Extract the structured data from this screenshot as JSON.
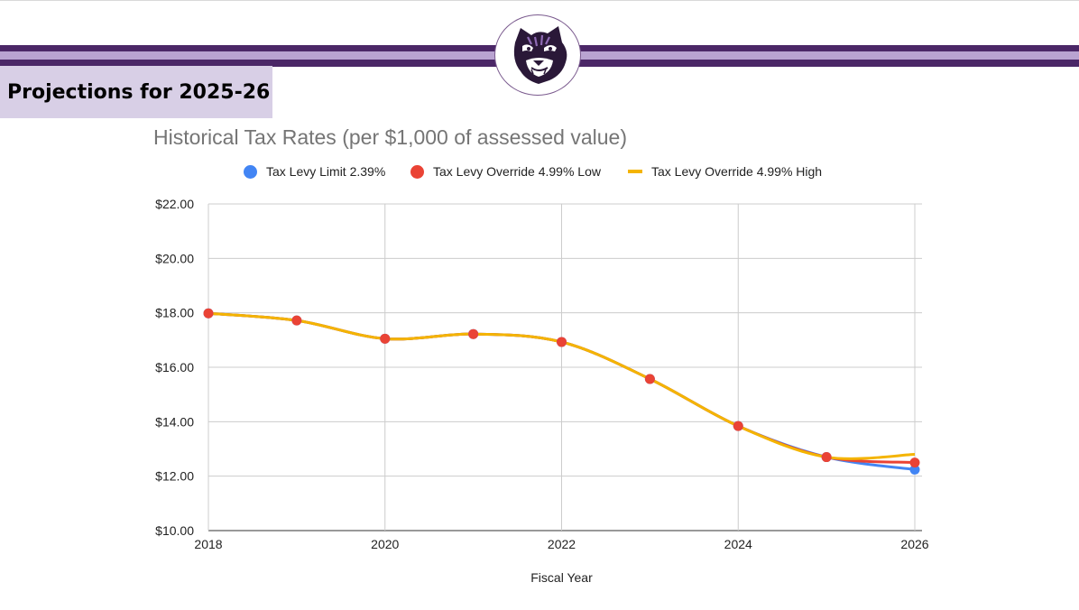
{
  "header": {
    "page_title": "Projections for 2025-26",
    "logo_icon": "tiger-mascot-icon",
    "stripe_colors": [
      "#4b2767",
      "#b9a3d1",
      "#4b2767"
    ],
    "title_box_color": "#d8cfe6"
  },
  "chart_data": {
    "type": "line",
    "title": "Historical Tax Rates (per $1,000 of assessed value)",
    "xlabel": "Fiscal Year",
    "ylabel": "",
    "xlim": [
      2018,
      2026
    ],
    "ylim": [
      10,
      22
    ],
    "x_ticks": [
      "2018",
      "2020",
      "2022",
      "2024",
      "2026"
    ],
    "y_ticks": [
      "$10.00",
      "$12.00",
      "$14.00",
      "$16.00",
      "$18.00",
      "$20.00",
      "$22.00"
    ],
    "grid": true,
    "legend_position": "top",
    "x": [
      2018,
      2019,
      2020,
      2021,
      2022,
      2023,
      2024,
      2025,
      2026
    ],
    "series": [
      {
        "name": "Tax Levy Limit 2.39%",
        "color": "#4285f4",
        "marker": "dot",
        "values": [
          17.98,
          17.72,
          17.05,
          17.22,
          16.93,
          15.57,
          13.84,
          12.7,
          12.24
        ]
      },
      {
        "name": "Tax Levy Override 4.99% Low",
        "color": "#ea4335",
        "marker": "dot",
        "values": [
          17.98,
          17.72,
          17.05,
          17.22,
          16.93,
          15.57,
          13.84,
          12.7,
          12.5
        ]
      },
      {
        "name": "Tax Levy Override 4.99% High",
        "color": "#f4b400",
        "marker": "line",
        "values": [
          17.98,
          17.72,
          17.05,
          17.22,
          16.93,
          15.57,
          13.84,
          12.7,
          12.8
        ]
      }
    ]
  }
}
